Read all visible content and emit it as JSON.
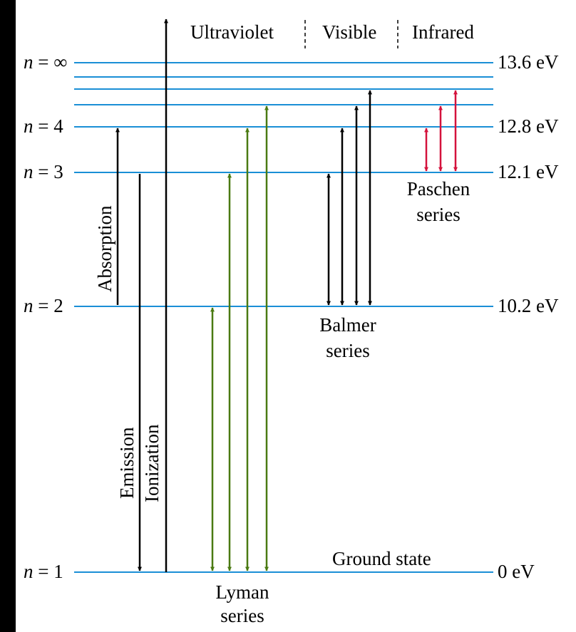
{
  "regions": {
    "uv": "Ultraviolet",
    "visible": "Visible",
    "ir": "Infrared"
  },
  "levels": {
    "inf": {
      "n": "n",
      "eq": "= ∞",
      "energy": "13.6 eV"
    },
    "n4": {
      "n": "n",
      "eq": "= 4",
      "energy": "12.8 eV"
    },
    "n3": {
      "n": "n",
      "eq": "= 3",
      "energy": "12.1 eV"
    },
    "n2": {
      "n": "n",
      "eq": "= 2",
      "energy": "10.2 eV"
    },
    "n1": {
      "n": "n",
      "eq": "= 1",
      "energy": "0 eV"
    }
  },
  "labels": {
    "absorption": "Absorption",
    "emission": "Emission",
    "ionization": "Ionization",
    "ground_state": "Ground state",
    "lyman_1": "Lyman",
    "lyman_2": "series",
    "balmer_1": "Balmer",
    "balmer_2": "series",
    "paschen_1": "Paschen",
    "paschen_2": "series"
  },
  "colors": {
    "level_line": "#1a8fd6",
    "lyman": "#4a7a12",
    "balmer": "#000000",
    "paschen": "#d4123c",
    "arrow": "#000000"
  }
}
